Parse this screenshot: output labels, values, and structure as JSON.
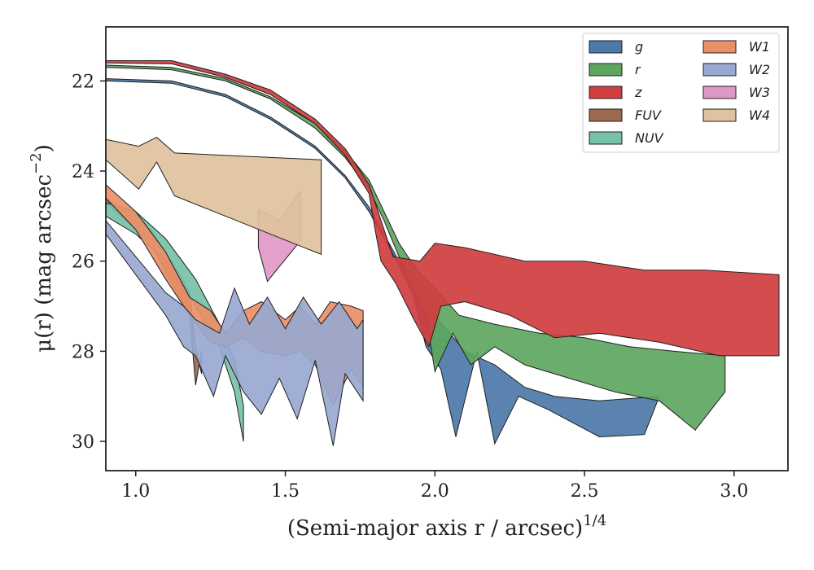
{
  "chart_data": {
    "type": "area",
    "xlabel": "(Semi-major axis r / arcsec)",
    "xlabel_exp": "1/4",
    "ylabel": "μ(r) (mag arcsec",
    "ylabel_exp": "−2",
    "ylabel_close": ")",
    "xlim": [
      0.9,
      3.18
    ],
    "ylim": [
      30.65,
      20.8
    ],
    "y_inverted": true,
    "xticks": [
      {
        "v": 1.0,
        "label": "1.0"
      },
      {
        "v": 1.5,
        "label": "1.5"
      },
      {
        "v": 2.0,
        "label": "2.0"
      },
      {
        "v": 2.5,
        "label": "2.5"
      },
      {
        "v": 3.0,
        "label": "3.0"
      }
    ],
    "yticks": [
      {
        "v": 22,
        "label": "22"
      },
      {
        "v": 24,
        "label": "24"
      },
      {
        "v": 26,
        "label": "26"
      },
      {
        "v": 28,
        "label": "28"
      },
      {
        "v": 30,
        "label": "30"
      }
    ],
    "grid": false,
    "legend_position": "top-right",
    "series": [
      {
        "name": "g",
        "color": "#4c7aa8",
        "upper": [
          [
            0.9,
            21.95
          ],
          [
            1.12,
            22.0
          ],
          [
            1.3,
            22.3
          ],
          [
            1.45,
            22.8
          ],
          [
            1.6,
            23.45
          ],
          [
            1.7,
            24.1
          ],
          [
            1.78,
            24.8
          ],
          [
            1.83,
            25.4
          ],
          [
            1.88,
            26.0
          ],
          [
            1.94,
            26.6
          ],
          [
            2.0,
            27.2
          ],
          [
            2.1,
            28.0
          ],
          [
            2.2,
            28.3
          ],
          [
            2.3,
            28.8
          ],
          [
            2.4,
            29.0
          ],
          [
            2.55,
            29.1
          ],
          [
            2.75,
            29.0
          ]
        ],
        "lower": [
          [
            0.9,
            22.0
          ],
          [
            1.12,
            22.05
          ],
          [
            1.3,
            22.35
          ],
          [
            1.45,
            22.85
          ],
          [
            1.6,
            23.5
          ],
          [
            1.7,
            24.15
          ],
          [
            1.78,
            24.9
          ],
          [
            1.83,
            25.5
          ],
          [
            1.88,
            26.1
          ],
          [
            1.93,
            26.8
          ],
          [
            1.97,
            27.9
          ],
          [
            2.02,
            28.4
          ],
          [
            2.07,
            29.9
          ],
          [
            2.14,
            28.0
          ],
          [
            2.2,
            30.05
          ],
          [
            2.28,
            29.0
          ],
          [
            2.38,
            29.3
          ],
          [
            2.55,
            29.9
          ],
          [
            2.7,
            29.85
          ],
          [
            2.75,
            29.0
          ]
        ]
      },
      {
        "name": "r",
        "color": "#5ea660",
        "upper": [
          [
            0.9,
            21.65
          ],
          [
            1.12,
            21.7
          ],
          [
            1.3,
            21.95
          ],
          [
            1.45,
            22.35
          ],
          [
            1.6,
            22.95
          ],
          [
            1.7,
            23.55
          ],
          [
            1.78,
            24.2
          ],
          [
            1.83,
            24.9
          ],
          [
            1.88,
            25.6
          ],
          [
            1.94,
            26.2
          ],
          [
            2.0,
            26.6
          ],
          [
            2.08,
            27.2
          ],
          [
            2.2,
            27.4
          ],
          [
            2.35,
            27.6
          ],
          [
            2.5,
            27.7
          ],
          [
            2.65,
            27.9
          ],
          [
            2.8,
            28.0
          ],
          [
            2.97,
            28.1
          ]
        ],
        "lower": [
          [
            0.9,
            21.7
          ],
          [
            1.12,
            21.75
          ],
          [
            1.3,
            22.0
          ],
          [
            1.45,
            22.4
          ],
          [
            1.6,
            23.05
          ],
          [
            1.7,
            23.7
          ],
          [
            1.78,
            24.4
          ],
          [
            1.83,
            25.1
          ],
          [
            1.88,
            25.9
          ],
          [
            1.93,
            26.7
          ],
          [
            1.97,
            27.2
          ],
          [
            2.0,
            28.45
          ],
          [
            2.06,
            27.6
          ],
          [
            2.12,
            28.3
          ],
          [
            2.2,
            27.9
          ],
          [
            2.3,
            28.3
          ],
          [
            2.45,
            28.6
          ],
          [
            2.6,
            28.9
          ],
          [
            2.75,
            29.1
          ],
          [
            2.87,
            29.75
          ],
          [
            2.97,
            28.9
          ]
        ]
      },
      {
        "name": "z",
        "color": "#d03e3f",
        "upper": [
          [
            0.9,
            21.55
          ],
          [
            1.12,
            21.55
          ],
          [
            1.3,
            21.85
          ],
          [
            1.45,
            22.2
          ],
          [
            1.6,
            22.85
          ],
          [
            1.7,
            23.5
          ],
          [
            1.78,
            24.3
          ],
          [
            1.82,
            25.1
          ],
          [
            1.86,
            25.9
          ],
          [
            1.95,
            26.0
          ],
          [
            2.0,
            25.6
          ],
          [
            2.1,
            25.7
          ],
          [
            2.3,
            26.0
          ],
          [
            2.5,
            26.0
          ],
          [
            2.7,
            26.2
          ],
          [
            2.9,
            26.2
          ],
          [
            3.15,
            26.3
          ]
        ],
        "lower": [
          [
            0.9,
            21.6
          ],
          [
            1.12,
            21.62
          ],
          [
            1.3,
            21.92
          ],
          [
            1.45,
            22.3
          ],
          [
            1.6,
            22.95
          ],
          [
            1.7,
            23.65
          ],
          [
            1.78,
            24.5
          ],
          [
            1.8,
            25.3
          ],
          [
            1.82,
            26.0
          ],
          [
            1.87,
            26.5
          ],
          [
            1.93,
            27.3
          ],
          [
            1.98,
            27.9
          ],
          [
            2.02,
            27.0
          ],
          [
            2.1,
            26.9
          ],
          [
            2.25,
            27.2
          ],
          [
            2.4,
            27.7
          ],
          [
            2.55,
            27.6
          ],
          [
            2.75,
            27.8
          ],
          [
            2.95,
            28.1
          ],
          [
            3.15,
            28.1
          ]
        ]
      },
      {
        "name": "FUV",
        "color": "#9c6a4f",
        "upper": [
          [
            0.9,
            24.6
          ],
          [
            1.05,
            25.3
          ],
          [
            1.12,
            26.0
          ],
          [
            1.18,
            26.7
          ],
          [
            1.2,
            27.9
          ],
          [
            1.22,
            28.5
          ]
        ],
        "lower": [
          [
            0.9,
            24.7
          ],
          [
            1.05,
            25.6
          ],
          [
            1.12,
            26.5
          ],
          [
            1.18,
            27.2
          ],
          [
            1.2,
            28.75
          ],
          [
            1.22,
            28.0
          ]
        ]
      },
      {
        "name": "NUV",
        "color": "#77c1a8",
        "upper": [
          [
            0.9,
            24.7
          ],
          [
            1.0,
            24.9
          ],
          [
            1.1,
            25.5
          ],
          [
            1.2,
            26.4
          ],
          [
            1.28,
            27.4
          ],
          [
            1.33,
            28.2
          ],
          [
            1.36,
            29.2
          ]
        ],
        "lower": [
          [
            0.9,
            25.0
          ],
          [
            1.0,
            25.4
          ],
          [
            1.1,
            26.0
          ],
          [
            1.2,
            27.0
          ],
          [
            1.28,
            27.9
          ],
          [
            1.33,
            28.9
          ],
          [
            1.36,
            30.0
          ]
        ]
      },
      {
        "name": "W1",
        "color": "#ea8f68",
        "upper": [
          [
            0.9,
            24.3
          ],
          [
            1.0,
            24.9
          ],
          [
            1.1,
            25.8
          ],
          [
            1.18,
            26.8
          ],
          [
            1.25,
            27.1
          ],
          [
            1.3,
            27.6
          ],
          [
            1.36,
            27.1
          ],
          [
            1.42,
            26.9
          ],
          [
            1.5,
            27.3
          ],
          [
            1.55,
            27.0
          ],
          [
            1.6,
            27.4
          ],
          [
            1.65,
            26.9
          ],
          [
            1.72,
            27.0
          ],
          [
            1.76,
            27.1
          ]
        ],
        "lower": [
          [
            0.9,
            24.6
          ],
          [
            1.0,
            25.3
          ],
          [
            1.1,
            26.4
          ],
          [
            1.18,
            27.2
          ],
          [
            1.25,
            27.8
          ],
          [
            1.3,
            27.9
          ],
          [
            1.36,
            27.7
          ],
          [
            1.42,
            28.0
          ],
          [
            1.5,
            28.1
          ],
          [
            1.55,
            28.0
          ],
          [
            1.6,
            28.3
          ],
          [
            1.66,
            29.2
          ],
          [
            1.72,
            28.4
          ],
          [
            1.76,
            28.8
          ]
        ]
      },
      {
        "name": "W2",
        "color": "#98a8cf",
        "upper": [
          [
            0.9,
            25.1
          ],
          [
            1.0,
            25.9
          ],
          [
            1.1,
            26.7
          ],
          [
            1.16,
            27.0
          ],
          [
            1.2,
            27.3
          ],
          [
            1.28,
            27.6
          ],
          [
            1.33,
            26.6
          ],
          [
            1.38,
            27.4
          ],
          [
            1.44,
            26.8
          ],
          [
            1.5,
            27.5
          ],
          [
            1.56,
            26.8
          ],
          [
            1.62,
            27.4
          ],
          [
            1.68,
            26.9
          ],
          [
            1.74,
            27.5
          ],
          [
            1.76,
            27.3
          ]
        ],
        "lower": [
          [
            0.9,
            25.4
          ],
          [
            1.0,
            26.3
          ],
          [
            1.1,
            27.2
          ],
          [
            1.16,
            27.9
          ],
          [
            1.2,
            28.1
          ],
          [
            1.26,
            29.0
          ],
          [
            1.3,
            28.1
          ],
          [
            1.36,
            28.9
          ],
          [
            1.42,
            29.4
          ],
          [
            1.48,
            28.6
          ],
          [
            1.54,
            29.5
          ],
          [
            1.6,
            28.2
          ],
          [
            1.66,
            30.1
          ],
          [
            1.7,
            28.5
          ],
          [
            1.76,
            29.1
          ]
        ]
      },
      {
        "name": "W3",
        "color": "#df98c6",
        "upper": [
          [
            1.41,
            24.85
          ],
          [
            1.48,
            25.1
          ],
          [
            1.55,
            24.45
          ]
        ],
        "lower": [
          [
            1.41,
            25.7
          ],
          [
            1.44,
            26.45
          ],
          [
            1.55,
            25.55
          ]
        ]
      },
      {
        "name": "W4",
        "color": "#dfc29f",
        "upper": [
          [
            0.9,
            23.3
          ],
          [
            1.01,
            23.45
          ],
          [
            1.07,
            23.25
          ],
          [
            1.13,
            23.6
          ],
          [
            1.62,
            23.75
          ]
        ],
        "lower": [
          [
            0.9,
            23.75
          ],
          [
            1.01,
            24.4
          ],
          [
            1.07,
            23.8
          ],
          [
            1.13,
            24.55
          ],
          [
            1.62,
            25.85
          ]
        ]
      }
    ]
  }
}
